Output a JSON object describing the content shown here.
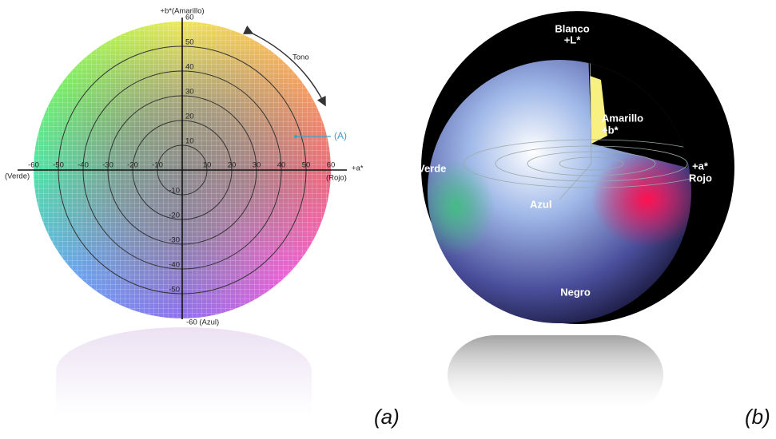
{
  "panel_a": {
    "b_axis_label": "+b*(Amarillo)",
    "a_axis_label": "+a*",
    "right_label": "(Rojo)",
    "left_label": "(Verde)",
    "bottom_label": "-60 (Azul)",
    "hue_label": "Tono",
    "point_label": "(A)",
    "a_ticks": [
      "-60",
      "-50",
      "-40",
      "-30",
      "-20",
      "-10",
      "10",
      "20",
      "30",
      "40",
      "50",
      "60"
    ],
    "b_ticks": [
      "60",
      "50",
      "40",
      "30",
      "20",
      "10",
      "-10",
      "-20",
      "-30",
      "-40",
      "-50"
    ],
    "caption": "(a)"
  },
  "panel_b": {
    "white": "Blanco",
    "l_axis": "+L*",
    "yellow": "Amarillo",
    "b_axis": "+b*",
    "green": "Verde",
    "a_axis": "+a*",
    "red": "Rojo",
    "blue": "Azul",
    "black": "Negro",
    "caption": "(b)"
  }
}
